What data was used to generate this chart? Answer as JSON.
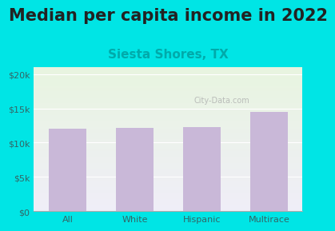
{
  "title": "Median per capita income in 2022",
  "subtitle": "Siesta Shores, TX",
  "categories": [
    "All",
    "White",
    "Hispanic",
    "Multirace"
  ],
  "values": [
    12000,
    12100,
    12300,
    14500
  ],
  "bar_color": "#c9b8d8",
  "title_fontsize": 15,
  "subtitle_fontsize": 11,
  "subtitle_color": "#00aaaa",
  "tick_label_color": "#336666",
  "background_outer": "#00e5e5",
  "background_inner_top": "#e8f5e0",
  "background_inner_bottom": "#f0eef8",
  "ylim": [
    0,
    21000
  ],
  "yticks": [
    0,
    5000,
    10000,
    15000,
    20000
  ],
  "ytick_labels": [
    "$0",
    "$5k",
    "$10k",
    "$15k",
    "$20k"
  ],
  "watermark": "City-Data.com"
}
